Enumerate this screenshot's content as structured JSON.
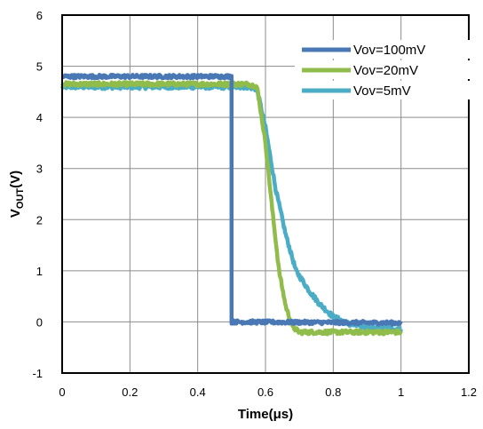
{
  "chart_data": {
    "type": "line",
    "xlabel": "Time(μs)",
    "ylabel": {
      "main": "V",
      "sub": "OUT",
      "suffix": "(V)"
    },
    "xlim": [
      0,
      1.2
    ],
    "ylim": [
      -1,
      6
    ],
    "xticks": [
      0,
      0.2,
      0.4,
      0.6,
      0.8,
      1,
      1.2
    ],
    "yticks": [
      -1,
      0,
      1,
      2,
      3,
      4,
      5,
      6
    ],
    "grid": true,
    "legend_position": "top-right",
    "series": [
      {
        "name": "Vov=100mV",
        "color": "#4a78b4",
        "noise": 0.035,
        "points": [
          [
            0,
            4.8
          ],
          [
            0.5,
            4.8
          ],
          [
            0.5,
            0.0
          ],
          [
            1.0,
            -0.02
          ]
        ]
      },
      {
        "name": "Vov=20mV",
        "color": "#8fbc4a",
        "noise": 0.04,
        "points": [
          [
            0,
            4.65
          ],
          [
            0.55,
            4.65
          ],
          [
            0.575,
            4.6
          ],
          [
            0.6,
            3.5
          ],
          [
            0.62,
            2.2
          ],
          [
            0.64,
            1.0
          ],
          [
            0.66,
            0.3
          ],
          [
            0.68,
            -0.1
          ],
          [
            0.7,
            -0.2
          ],
          [
            1.0,
            -0.2
          ]
        ]
      },
      {
        "name": "Vov=5mV",
        "color": "#4bacc6",
        "noise": 0.045,
        "points": [
          [
            0,
            4.6
          ],
          [
            0.55,
            4.6
          ],
          [
            0.575,
            4.55
          ],
          [
            0.6,
            3.8
          ],
          [
            0.63,
            2.6
          ],
          [
            0.66,
            1.7
          ],
          [
            0.69,
            1.0
          ],
          [
            0.73,
            0.6
          ],
          [
            0.76,
            0.35
          ],
          [
            0.8,
            0.1
          ],
          [
            0.85,
            -0.05
          ],
          [
            0.9,
            -0.1
          ],
          [
            1.0,
            -0.15
          ]
        ]
      }
    ]
  }
}
